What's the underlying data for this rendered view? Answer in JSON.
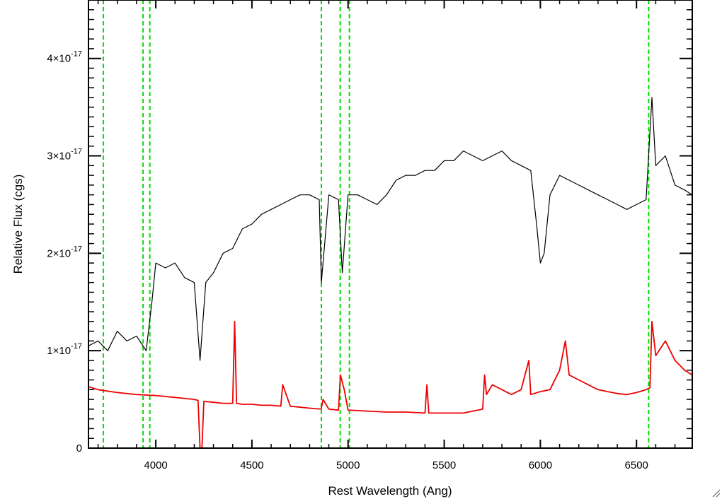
{
  "chart_data": {
    "type": "line",
    "title": "",
    "xlabel": "Rest Wavelength (Ang)",
    "ylabel": "Relative Flux (cgs)",
    "xlim": [
      3650,
      6790
    ],
    "ylim": [
      0,
      4.6e-17
    ],
    "x_ticks": [
      4000,
      4500,
      5000,
      5500,
      6000,
      6500
    ],
    "x_tick_labels": [
      "4000",
      "4500",
      "5000",
      "5500",
      "6000",
      "6500"
    ],
    "y_ticks": [
      0,
      1e-17,
      2e-17,
      3e-17,
      4e-17
    ],
    "y_tick_labels": [
      {
        "mantissa": "0",
        "exponent": ""
      },
      {
        "mantissa": "1×10",
        "exponent": "-17"
      },
      {
        "mantissa": "2×10",
        "exponent": "-17"
      },
      {
        "mantissa": "3×10",
        "exponent": "-17"
      },
      {
        "mantissa": "4×10",
        "exponent": "-17"
      }
    ],
    "grid": false,
    "legend": "none",
    "reference_lines": {
      "color": "#00dd00",
      "style": "dashed",
      "x": [
        3727,
        3934,
        3969,
        4861,
        4959,
        5007,
        6563
      ]
    },
    "series": [
      {
        "color": "#000000",
        "x": [
          3650,
          3700,
          3750,
          3800,
          3850,
          3900,
          3950,
          3980,
          4000,
          4050,
          4100,
          4150,
          4200,
          4230,
          4260,
          4300,
          4350,
          4400,
          4450,
          4500,
          4550,
          4600,
          4650,
          4700,
          4750,
          4800,
          4850,
          4861,
          4900,
          4950,
          4970,
          5000,
          5050,
          5100,
          5150,
          5200,
          5250,
          5300,
          5350,
          5400,
          5450,
          5500,
          5550,
          5600,
          5650,
          5700,
          5750,
          5800,
          5850,
          5900,
          5950,
          5980,
          6000,
          6020,
          6050,
          6100,
          6150,
          6200,
          6250,
          6300,
          6350,
          6400,
          6450,
          6500,
          6550,
          6580,
          6600,
          6650,
          6700,
          6750,
          6790
        ],
        "y": [
          1.05e-17,
          1.1e-17,
          1e-17,
          1.2e-17,
          1.1e-17,
          1.15e-17,
          1e-17,
          1.5e-17,
          1.9e-17,
          1.85e-17,
          1.9e-17,
          1.75e-17,
          1.7e-17,
          9e-18,
          1.7e-17,
          1.8e-17,
          2e-17,
          2.05e-17,
          2.25e-17,
          2.3e-17,
          2.4e-17,
          2.45e-17,
          2.5e-17,
          2.55e-17,
          2.6e-17,
          2.6e-17,
          2.55e-17,
          1.7e-17,
          2.6e-17,
          2.55e-17,
          1.8e-17,
          2.6e-17,
          2.6e-17,
          2.55e-17,
          2.5e-17,
          2.6e-17,
          2.75e-17,
          2.8e-17,
          2.8e-17,
          2.85e-17,
          2.85e-17,
          2.95e-17,
          2.95e-17,
          3.05e-17,
          3e-17,
          2.95e-17,
          3e-17,
          3.05e-17,
          2.95e-17,
          2.9e-17,
          2.85e-17,
          2.3e-17,
          1.9e-17,
          2e-17,
          2.6e-17,
          2.8e-17,
          2.75e-17,
          2.7e-17,
          2.65e-17,
          2.6e-17,
          2.55e-17,
          2.5e-17,
          2.45e-17,
          2.5e-17,
          2.55e-17,
          3.6e-17,
          2.9e-17,
          3e-17,
          2.7e-17,
          2.65e-17,
          2.6e-17
        ]
      },
      {
        "color": "#ee0000",
        "x": [
          3650,
          3700,
          3800,
          3900,
          4000,
          4100,
          4200,
          4220,
          4230,
          4240,
          4250,
          4300,
          4350,
          4400,
          4410,
          4420,
          4450,
          4500,
          4550,
          4600,
          4650,
          4660,
          4700,
          4800,
          4860,
          4870,
          4900,
          4950,
          4960,
          4980,
          5000,
          5100,
          5200,
          5300,
          5400,
          5410,
          5420,
          5500,
          5600,
          5700,
          5710,
          5720,
          5750,
          5800,
          5850,
          5900,
          5940,
          5950,
          6000,
          6050,
          6100,
          6130,
          6150,
          6200,
          6250,
          6300,
          6350,
          6400,
          6450,
          6500,
          6550,
          6570,
          6580,
          6600,
          6650,
          6700,
          6750,
          6790
        ],
        "y": [
          6.3e-18,
          6e-18,
          5.7e-18,
          5.5e-18,
          5.4e-18,
          5.2e-18,
          5e-18,
          4.9e-18,
          0.0,
          0.0,
          4.8e-18,
          4.7e-18,
          4.6e-18,
          4.6e-18,
          1.3e-17,
          4.6e-18,
          4.5e-18,
          4.5e-18,
          4.4e-18,
          4.4e-18,
          4.3e-18,
          6.5e-18,
          4.3e-18,
          4.1e-18,
          4e-18,
          5e-18,
          4e-18,
          3.9e-18,
          7.5e-18,
          6e-18,
          3.9e-18,
          3.8e-18,
          3.7e-18,
          3.7e-18,
          3.6e-18,
          6.5e-18,
          3.6e-18,
          3.6e-18,
          3.6e-18,
          4e-18,
          7.5e-18,
          5.5e-18,
          6.5e-18,
          6e-18,
          5.5e-18,
          6e-18,
          9e-18,
          5.5e-18,
          5.8e-18,
          6e-18,
          8e-18,
          1.1e-17,
          7.5e-18,
          7e-18,
          6.5e-18,
          6e-18,
          5.8e-18,
          5.6e-18,
          5.5e-18,
          5.7e-18,
          6e-18,
          6.2e-18,
          1.3e-17,
          9.5e-18,
          1.1e-17,
          9e-18,
          8e-18,
          7.5e-18
        ]
      }
    ]
  }
}
